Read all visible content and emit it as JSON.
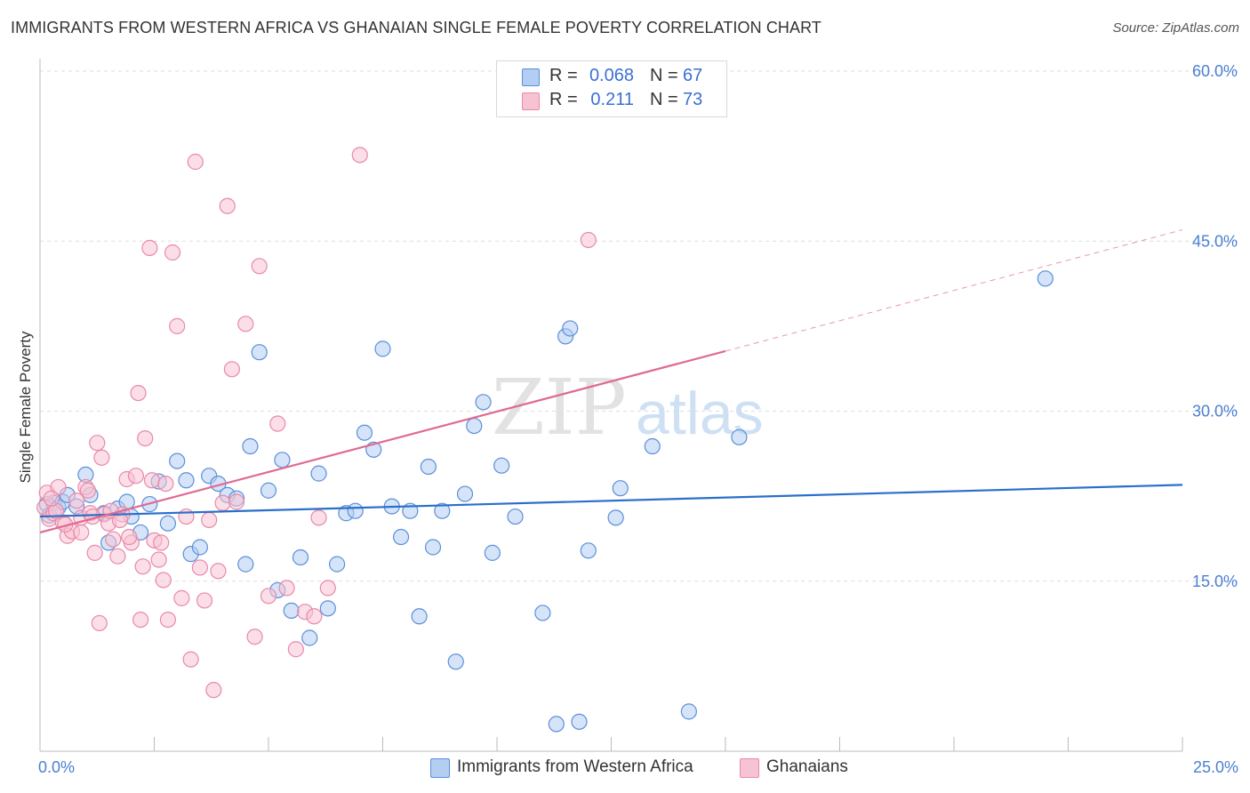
{
  "title": "IMMIGRANTS FROM WESTERN AFRICA VS GHANAIAN SINGLE FEMALE POVERTY CORRELATION CHART",
  "source": "Source: ZipAtlas.com",
  "watermark": {
    "zip": "ZIP",
    "atlas": "atlas"
  },
  "colors": {
    "blue_fill": "#b3cdf3",
    "blue_stroke": "#5b8fd9",
    "blue_line": "#2a6fcc",
    "pink_fill": "#f7c3d3",
    "pink_stroke": "#e88aa8",
    "pink_line": "#e06a92",
    "tick_text": "#4a7fd4",
    "grid": "#dddddd"
  },
  "legend": {
    "rows": [
      {
        "r_label": "R =",
        "r_value": "0.068",
        "n_label": "N =",
        "n_value": "67"
      },
      {
        "r_label": "R =",
        "r_value": "0.211",
        "n_label": "N =",
        "n_value": "73"
      }
    ]
  },
  "chart_data": {
    "type": "scatter",
    "title": "IMMIGRANTS FROM WESTERN AFRICA VS GHANAIAN SINGLE FEMALE POVERTY CORRELATION CHART",
    "xlabel": "",
    "ylabel": "Single Female Poverty",
    "xlim": [
      0,
      25
    ],
    "ylim": [
      0,
      60
    ],
    "x_tick_labels": [
      "0.0%",
      "25.0%"
    ],
    "y_tick_values": [
      15,
      30,
      45,
      60
    ],
    "y_tick_labels": [
      "15.0%",
      "30.0%",
      "45.0%",
      "60.0%"
    ],
    "grid": true,
    "legend_position": "top-center",
    "series": [
      {
        "name": "Immigrants from Western Africa",
        "color": "#5b8fd9",
        "trend": {
          "x": [
            0,
            25
          ],
          "y": [
            20.7,
            23.5
          ],
          "dashed_extension": false
        },
        "points": [
          [
            0.15,
            21.8
          ],
          [
            0.2,
            20.8
          ],
          [
            0.3,
            21.9
          ],
          [
            0.4,
            21.5
          ],
          [
            0.5,
            22.0
          ],
          [
            0.6,
            22.6
          ],
          [
            0.8,
            21.6
          ],
          [
            1.0,
            24.4
          ],
          [
            1.1,
            22.6
          ],
          [
            1.4,
            21.0
          ],
          [
            1.5,
            18.4
          ],
          [
            1.7,
            21.4
          ],
          [
            1.9,
            22.0
          ],
          [
            2.0,
            20.7
          ],
          [
            2.2,
            19.3
          ],
          [
            2.4,
            21.8
          ],
          [
            2.6,
            23.8
          ],
          [
            2.8,
            20.1
          ],
          [
            3.0,
            25.6
          ],
          [
            3.2,
            23.9
          ],
          [
            3.3,
            17.4
          ],
          [
            3.5,
            18.0
          ],
          [
            3.7,
            24.3
          ],
          [
            3.9,
            23.6
          ],
          [
            4.1,
            22.6
          ],
          [
            4.3,
            22.3
          ],
          [
            4.5,
            16.5
          ],
          [
            4.6,
            26.9
          ],
          [
            4.8,
            35.2
          ],
          [
            5.0,
            23.0
          ],
          [
            5.2,
            14.2
          ],
          [
            5.3,
            25.7
          ],
          [
            5.5,
            12.4
          ],
          [
            5.7,
            17.1
          ],
          [
            5.9,
            10.0
          ],
          [
            6.1,
            24.5
          ],
          [
            6.3,
            12.6
          ],
          [
            6.5,
            16.5
          ],
          [
            6.7,
            21.0
          ],
          [
            6.9,
            21.2
          ],
          [
            7.1,
            28.1
          ],
          [
            7.3,
            26.6
          ],
          [
            7.5,
            35.5
          ],
          [
            7.7,
            21.6
          ],
          [
            7.9,
            18.9
          ],
          [
            8.1,
            21.2
          ],
          [
            8.3,
            11.9
          ],
          [
            8.5,
            25.1
          ],
          [
            8.6,
            18.0
          ],
          [
            8.8,
            21.2
          ],
          [
            9.1,
            7.9
          ],
          [
            9.3,
            22.7
          ],
          [
            9.5,
            28.7
          ],
          [
            9.7,
            30.8
          ],
          [
            9.9,
            17.5
          ],
          [
            10.1,
            25.2
          ],
          [
            10.4,
            20.7
          ],
          [
            11.0,
            12.2
          ],
          [
            11.3,
            2.4
          ],
          [
            11.5,
            36.6
          ],
          [
            11.6,
            37.3
          ],
          [
            11.8,
            2.6
          ],
          [
            12.0,
            17.7
          ],
          [
            12.6,
            20.6
          ],
          [
            12.7,
            23.2
          ],
          [
            13.4,
            26.9
          ],
          [
            14.2,
            3.5
          ],
          [
            15.3,
            27.7
          ],
          [
            22.0,
            41.7
          ]
        ]
      },
      {
        "name": "Ghanaians",
        "color": "#e88aa8",
        "trend": {
          "x": [
            0,
            15
          ],
          "y": [
            19.3,
            35.3
          ],
          "dashed_extension": true,
          "extension_to": [
            25,
            46.0
          ]
        },
        "points": [
          [
            0.1,
            21.5
          ],
          [
            0.15,
            22.8
          ],
          [
            0.2,
            20.5
          ],
          [
            0.3,
            21.0
          ],
          [
            0.4,
            23.3
          ],
          [
            0.5,
            20.2
          ],
          [
            0.6,
            19.0
          ],
          [
            0.7,
            19.4
          ],
          [
            0.8,
            22.1
          ],
          [
            0.9,
            20.6
          ],
          [
            1.0,
            23.3
          ],
          [
            1.1,
            21.0
          ],
          [
            1.2,
            17.5
          ],
          [
            1.25,
            27.2
          ],
          [
            1.3,
            11.3
          ],
          [
            1.4,
            20.9
          ],
          [
            1.5,
            20.1
          ],
          [
            1.6,
            18.7
          ],
          [
            1.7,
            17.2
          ],
          [
            1.8,
            20.9
          ],
          [
            1.9,
            24.0
          ],
          [
            2.0,
            18.4
          ],
          [
            2.1,
            24.3
          ],
          [
            2.15,
            31.6
          ],
          [
            2.2,
            11.6
          ],
          [
            2.3,
            27.6
          ],
          [
            2.4,
            44.4
          ],
          [
            2.5,
            18.6
          ],
          [
            2.6,
            16.9
          ],
          [
            2.7,
            15.1
          ],
          [
            2.8,
            11.6
          ],
          [
            2.9,
            44.0
          ],
          [
            3.0,
            37.5
          ],
          [
            3.1,
            13.5
          ],
          [
            3.2,
            20.7
          ],
          [
            3.3,
            8.1
          ],
          [
            3.4,
            52.0
          ],
          [
            3.5,
            16.2
          ],
          [
            3.6,
            13.3
          ],
          [
            3.7,
            20.4
          ],
          [
            3.8,
            5.4
          ],
          [
            3.9,
            15.9
          ],
          [
            4.0,
            21.9
          ],
          [
            4.1,
            48.1
          ],
          [
            4.2,
            33.7
          ],
          [
            4.3,
            22.0
          ],
          [
            4.5,
            37.7
          ],
          [
            4.7,
            10.1
          ],
          [
            4.8,
            42.8
          ],
          [
            5.0,
            13.7
          ],
          [
            5.2,
            28.9
          ],
          [
            5.4,
            14.4
          ],
          [
            5.6,
            9.0
          ],
          [
            5.8,
            12.3
          ],
          [
            6.0,
            11.9
          ],
          [
            6.1,
            20.6
          ],
          [
            6.3,
            14.4
          ],
          [
            7.0,
            52.6
          ],
          [
            0.35,
            21.2
          ],
          [
            0.55,
            20.0
          ],
          [
            0.9,
            19.3
          ],
          [
            1.05,
            23.0
          ],
          [
            1.15,
            20.7
          ],
          [
            1.35,
            25.9
          ],
          [
            1.55,
            21.2
          ],
          [
            1.75,
            20.4
          ],
          [
            1.95,
            18.9
          ],
          [
            2.25,
            16.3
          ],
          [
            2.45,
            23.9
          ],
          [
            2.65,
            18.4
          ],
          [
            2.75,
            23.6
          ],
          [
            12.0,
            45.1
          ],
          [
            0.25,
            22.3
          ]
        ]
      }
    ]
  },
  "bottom_legend": {
    "items": [
      "Immigrants from Western Africa",
      "Ghanaians"
    ]
  }
}
